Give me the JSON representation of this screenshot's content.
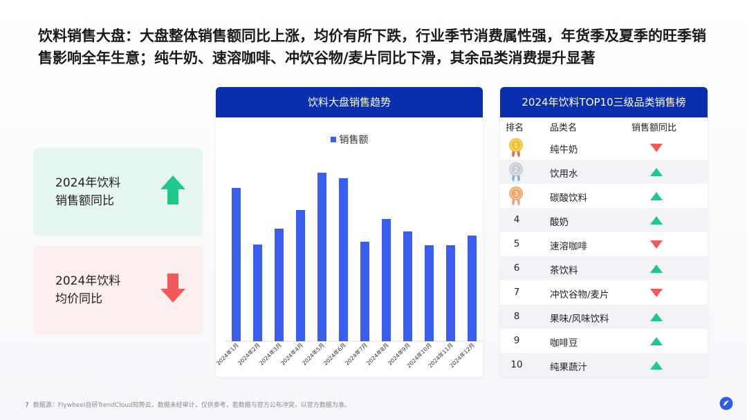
{
  "headline": "饮料销售大盘：大盘整体销售额同比上涨，均价有所下跌，行业季节消费属性强，年货季及夏季的旺季销售影响全年生意；纯牛奶、速溶咖啡、冲饮谷物/麦片同比下滑，其余品类消费提升显著",
  "kpis": {
    "sales": {
      "line1": "2024年饮料",
      "line2": "销售额同比",
      "direction": "up",
      "color": "#1ec98a"
    },
    "price": {
      "line1": "2024年饮料",
      "line2": "均价同比",
      "direction": "down",
      "color": "#f25a5a"
    }
  },
  "chart_panel": {
    "title": "饮料大盘销售趋势"
  },
  "chart_data": {
    "type": "bar",
    "title": "饮料大盘销售趋势",
    "categories": [
      "2024年1月",
      "2024年2月",
      "2024年3月",
      "2024年4月",
      "2024年5月",
      "2024年6月",
      "2024年7月",
      "2024年8月",
      "2024年9月",
      "2024年10月",
      "2024年11月",
      "2024年12月"
    ],
    "series": [
      {
        "name": "销售额",
        "values": [
          222,
          140,
          163,
          190,
          244,
          236,
          144,
          177,
          159,
          139,
          139,
          153
        ],
        "color": "#3a5ef0"
      }
    ],
    "ylim": [
      0,
      260
    ],
    "yaxis_visible": false,
    "legend_position": "top-center",
    "grid": false
  },
  "rank_panel": {
    "title": "2024年饮料TOP10三级品类销售榜",
    "col_rank": "排名",
    "col_category": "品类名",
    "col_change": "销售额同比",
    "rows": [
      {
        "rank": "1",
        "name": "纯牛奶",
        "trend": "down",
        "medal": "gold"
      },
      {
        "rank": "2",
        "name": "饮用水",
        "trend": "up",
        "medal": "silver"
      },
      {
        "rank": "3",
        "name": "碳酸饮料",
        "trend": "up",
        "medal": "bronze"
      },
      {
        "rank": "4",
        "name": "酸奶",
        "trend": "up",
        "medal": ""
      },
      {
        "rank": "5",
        "name": "速溶咖啡",
        "trend": "down",
        "medal": ""
      },
      {
        "rank": "6",
        "name": "茶饮料",
        "trend": "up",
        "medal": ""
      },
      {
        "rank": "7",
        "name": "冲饮谷物/麦片",
        "trend": "down",
        "medal": ""
      },
      {
        "rank": "8",
        "name": "果味/风味饮料",
        "trend": "up",
        "medal": ""
      },
      {
        "rank": "9",
        "name": "咖啡豆",
        "trend": "up",
        "medal": ""
      },
      {
        "rank": "10",
        "name": "纯果蔬汁",
        "trend": "up",
        "medal": ""
      }
    ],
    "colors": {
      "up": "#1ec98a",
      "down": "#f25a5a"
    }
  },
  "footer": {
    "page": "7",
    "source": "数据源：Flywheel自研TrendCloud知势云。数据未经审计，仅供参考，若数据与官方公布冲突，以官方数据为准。"
  },
  "logo_icon": "flywheel-logo-icon"
}
